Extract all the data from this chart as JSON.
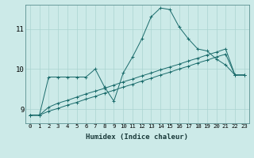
{
  "background_color": "#cceae8",
  "grid_color": "#aad4d0",
  "line_color": "#1a6b6b",
  "xlabel": "Humidex (Indice chaleur)",
  "xlim": [
    -0.5,
    23.5
  ],
  "ylim": [
    8.65,
    11.6
  ],
  "yticks": [
    9,
    10,
    11
  ],
  "xticks": [
    0,
    1,
    2,
    3,
    4,
    5,
    6,
    7,
    8,
    9,
    10,
    11,
    12,
    13,
    14,
    15,
    16,
    17,
    18,
    19,
    20,
    21,
    22,
    23
  ],
  "line1_x": [
    0,
    1,
    2,
    3,
    4,
    5,
    6,
    7,
    8,
    9,
    10,
    11,
    12,
    13,
    14,
    15,
    16,
    17,
    18,
    19,
    20,
    21,
    22,
    23
  ],
  "line1_y": [
    8.85,
    8.85,
    9.8,
    9.8,
    9.8,
    9.8,
    9.8,
    10.0,
    9.55,
    9.2,
    9.9,
    10.3,
    10.75,
    11.3,
    11.52,
    11.48,
    11.05,
    10.75,
    10.5,
    10.45,
    10.25,
    10.1,
    9.85,
    9.85
  ],
  "line2_x": [
    0,
    1,
    2,
    3,
    4,
    5,
    6,
    7,
    8,
    9,
    10,
    11,
    12,
    13,
    14,
    15,
    16,
    17,
    18,
    19,
    20,
    21,
    22,
    23
  ],
  "line2_y": [
    8.85,
    8.85,
    9.05,
    9.15,
    9.22,
    9.3,
    9.38,
    9.45,
    9.52,
    9.6,
    9.68,
    9.75,
    9.83,
    9.9,
    9.98,
    10.05,
    10.12,
    10.2,
    10.27,
    10.35,
    10.42,
    10.5,
    9.85,
    9.85
  ],
  "line3_x": [
    0,
    1,
    2,
    3,
    4,
    5,
    6,
    7,
    8,
    9,
    10,
    11,
    12,
    13,
    14,
    15,
    16,
    17,
    18,
    19,
    20,
    21,
    22,
    23
  ],
  "line3_y": [
    8.85,
    8.85,
    8.95,
    9.02,
    9.1,
    9.17,
    9.25,
    9.32,
    9.4,
    9.47,
    9.55,
    9.62,
    9.7,
    9.77,
    9.85,
    9.92,
    10.0,
    10.07,
    10.15,
    10.22,
    10.3,
    10.37,
    9.85,
    9.85
  ]
}
